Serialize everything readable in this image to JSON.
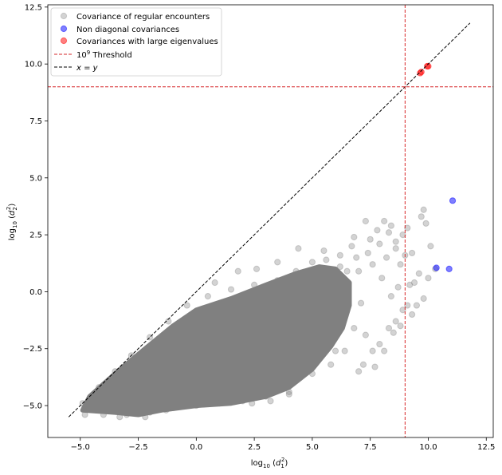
{
  "chart_data": {
    "type": "scatter",
    "xlabel_base": "log",
    "xlabel_sub": "10",
    "xlabel_paren_open": "(",
    "xlabel_var": "d",
    "xlabel_var_sub": "1",
    "xlabel_var_sup": "2",
    "xlabel_paren_close": ")",
    "ylabel_base": "log",
    "ylabel_sub": "10",
    "ylabel_paren_open": "(",
    "ylabel_var": "d",
    "ylabel_var_sub": "2",
    "ylabel_var_sup": "2",
    "ylabel_paren_close": ")",
    "xlim": [
      -6.4,
      12.8
    ],
    "ylim": [
      -6.4,
      12.6
    ],
    "xticks": [
      -5.0,
      -2.5,
      0.0,
      2.5,
      5.0,
      7.5,
      10.0,
      12.5
    ],
    "yticks": [
      -5.0,
      -2.5,
      0.0,
      2.5,
      5.0,
      7.5,
      10.0,
      12.5
    ],
    "xtick_labels": [
      "−5.0",
      "−2.5",
      "0.0",
      "2.5",
      "5.0",
      "7.5",
      "10.0",
      "12.5"
    ],
    "ytick_labels": [
      "−5.0",
      "−2.5",
      "0.0",
      "2.5",
      "5.0",
      "7.5",
      "10.0",
      "12.5"
    ],
    "grid": false,
    "legend_placement": "upper-left",
    "threshold": 9.0,
    "threshold_color": "#d62728",
    "identity_line": {
      "from": -5.5,
      "to": 11.8
    },
    "identity_color": "#000000",
    "series": [
      {
        "name": "Covariance of regular encounters",
        "color": "#808080",
        "alpha": 0.35,
        "cloud": {
          "polygon": [
            [
              -4.9,
              -5.2
            ],
            [
              -4.6,
              -4.6
            ],
            [
              -3.5,
              -3.6
            ],
            [
              -2.2,
              -2.5
            ],
            [
              -1.0,
              -1.5
            ],
            [
              0.0,
              -0.8
            ],
            [
              1.5,
              -0.3
            ],
            [
              3.0,
              0.3
            ],
            [
              4.3,
              0.8
            ],
            [
              5.3,
              1.1
            ],
            [
              6.0,
              1.0
            ],
            [
              6.6,
              0.4
            ],
            [
              6.6,
              -0.6
            ],
            [
              6.3,
              -1.6
            ],
            [
              5.8,
              -2.4
            ],
            [
              5.0,
              -3.4
            ],
            [
              4.0,
              -4.2
            ],
            [
              3.0,
              -4.6
            ],
            [
              1.5,
              -4.9
            ],
            [
              0.0,
              -5.0
            ],
            [
              -1.5,
              -5.2
            ],
            [
              -2.5,
              -5.4
            ],
            [
              -3.5,
              -5.3
            ]
          ],
          "upper_edge": [
            [
              -4.9,
              -4.9
            ],
            [
              -4.2,
              -4.2
            ],
            [
              -3.5,
              -3.5
            ],
            [
              -2.8,
              -2.8
            ],
            [
              -2.0,
              -2.0
            ],
            [
              -1.2,
              -1.3
            ],
            [
              -0.4,
              -0.6
            ],
            [
              0.5,
              -0.2
            ],
            [
              1.5,
              0.1
            ],
            [
              2.5,
              0.3
            ],
            [
              3.5,
              0.5
            ],
            [
              4.3,
              0.9
            ],
            [
              5.0,
              1.3
            ],
            [
              5.6,
              1.4
            ],
            [
              6.2,
              1.1
            ]
          ],
          "lower_edge": [
            [
              -4.8,
              -5.4
            ],
            [
              -4.0,
              -5.4
            ],
            [
              -3.0,
              -5.4
            ],
            [
              -2.0,
              -5.3
            ],
            [
              -1.0,
              -5.1
            ],
            [
              0.0,
              -5.0
            ],
            [
              1.0,
              -4.9
            ],
            [
              2.0,
              -4.8
            ],
            [
              3.0,
              -4.6
            ],
            [
              4.0,
              -4.4
            ],
            [
              5.0,
              -3.6
            ],
            [
              6.0,
              -2.6
            ],
            [
              6.8,
              -1.6
            ]
          ]
        },
        "points": [
          [
            6.7,
            2.0
          ],
          [
            7.3,
            3.1
          ],
          [
            7.8,
            2.7
          ],
          [
            8.1,
            3.1
          ],
          [
            8.4,
            2.9
          ],
          [
            8.6,
            2.2
          ],
          [
            8.9,
            2.5
          ],
          [
            9.1,
            2.8
          ],
          [
            9.7,
            3.3
          ],
          [
            9.8,
            3.6
          ],
          [
            9.9,
            3.0
          ],
          [
            10.1,
            2.0
          ],
          [
            10.3,
            1.0
          ],
          [
            9.6,
            0.8
          ],
          [
            9.4,
            0.4
          ],
          [
            9.2,
            0.3
          ],
          [
            9.8,
            -0.3
          ],
          [
            9.5,
            -0.6
          ],
          [
            9.3,
            -1.0
          ],
          [
            8.9,
            -0.8
          ],
          [
            8.6,
            -1.3
          ],
          [
            8.3,
            -1.6
          ],
          [
            7.9,
            -2.3
          ],
          [
            7.6,
            -2.6
          ],
          [
            7.2,
            -3.2
          ],
          [
            7.0,
            -3.5
          ],
          [
            7.7,
            -3.3
          ],
          [
            8.1,
            -2.6
          ],
          [
            7.4,
            1.7
          ],
          [
            8.2,
            1.5
          ],
          [
            8.8,
            1.2
          ],
          [
            7.0,
            0.9
          ],
          [
            8.4,
            -0.2
          ],
          [
            8.0,
            0.6
          ],
          [
            6.9,
            1.5
          ],
          [
            7.6,
            1.2
          ],
          [
            8.7,
            0.2
          ],
          [
            7.3,
            -1.9
          ],
          [
            8.5,
            -1.8
          ],
          [
            7.1,
            -0.5
          ],
          [
            6.5,
            0.9
          ],
          [
            6.2,
            1.6
          ],
          [
            5.5,
            1.8
          ],
          [
            4.4,
            1.9
          ],
          [
            3.5,
            1.3
          ],
          [
            2.6,
            1.0
          ],
          [
            1.8,
            0.9
          ],
          [
            0.8,
            0.4
          ],
          [
            4.0,
            -4.5
          ],
          [
            3.2,
            -4.8
          ],
          [
            2.4,
            -4.9
          ],
          [
            -1.3,
            -5.2
          ],
          [
            -2.2,
            -5.5
          ],
          [
            -3.3,
            -5.5
          ],
          [
            5.8,
            -3.2
          ],
          [
            6.4,
            -2.6
          ],
          [
            9.0,
            1.6
          ],
          [
            7.9,
            2.1
          ],
          [
            8.6,
            1.9
          ],
          [
            9.3,
            1.7
          ],
          [
            6.8,
            2.4
          ],
          [
            7.5,
            2.3
          ],
          [
            8.3,
            2.6
          ],
          [
            10.0,
            0.6
          ],
          [
            8.8,
            -1.5
          ],
          [
            9.1,
            -0.6
          ]
        ]
      },
      {
        "name": "Non diagonal covariances",
        "color": "#0000ff",
        "alpha": 0.5,
        "points": [
          [
            11.05,
            4.0
          ],
          [
            10.35,
            1.05
          ],
          [
            10.9,
            1.0
          ]
        ]
      },
      {
        "name": "Covariances with large eigenvalues",
        "color": "#ff0000",
        "alpha": 0.5,
        "points": [
          [
            9.65,
            9.6
          ],
          [
            9.7,
            9.65
          ],
          [
            9.95,
            9.9
          ],
          [
            10.0,
            9.9
          ]
        ]
      }
    ],
    "legend": [
      {
        "label": "Covariance of regular encounters",
        "kind": "marker",
        "color": "#808080",
        "alpha": 0.35
      },
      {
        "label": "Non diagonal covariances",
        "kind": "marker",
        "color": "#0000ff",
        "alpha": 0.5
      },
      {
        "label": "Covariances with large eigenvalues",
        "kind": "marker",
        "color": "#ff0000",
        "alpha": 0.5
      },
      {
        "label_base": "10",
        "label_sup": "9",
        "label_rest": " Threshold",
        "kind": "dashed",
        "color": "#d62728"
      },
      {
        "label_var1": "x",
        "label_eq": " = ",
        "label_var2": "y",
        "kind": "dashed",
        "color": "#000000"
      }
    ]
  }
}
